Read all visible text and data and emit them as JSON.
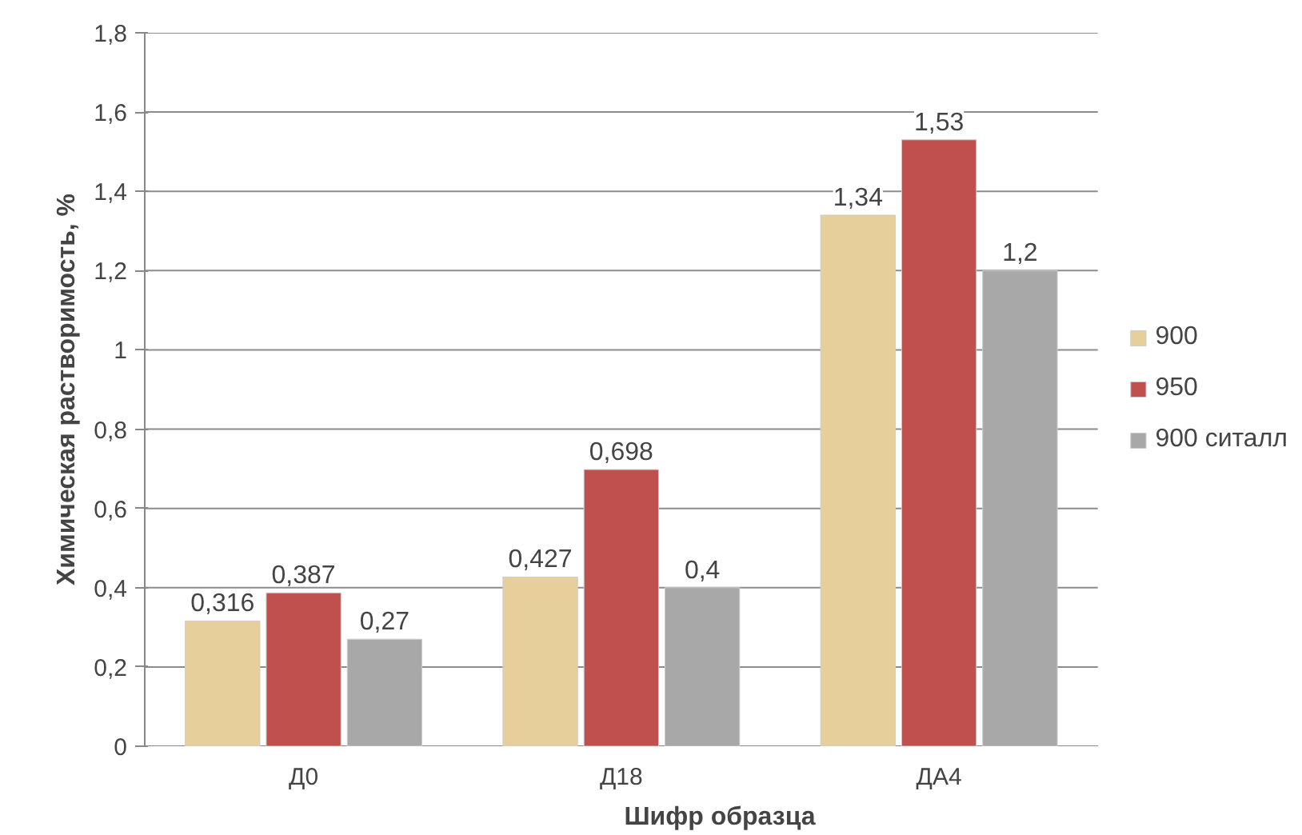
{
  "chart_data": {
    "type": "bar",
    "xlabel": "Шифр образца",
    "ylabel": "Химическая растворимость, %",
    "categories": [
      "Д0",
      "Д18",
      "ДА4"
    ],
    "series": [
      {
        "name": "900",
        "color": "#e6cf9a",
        "values": [
          0.316,
          0.427,
          1.34
        ],
        "value_labels": [
          "0,316",
          "0,427",
          "1,34"
        ]
      },
      {
        "name": "950",
        "color": "#c0504d",
        "values": [
          0.387,
          0.698,
          1.53
        ],
        "value_labels": [
          "0,387",
          "0,698",
          "1,53"
        ]
      },
      {
        "name": "900 ситалл",
        "color": "#a8a8a8",
        "values": [
          0.27,
          0.4,
          1.2
        ],
        "value_labels": [
          "0,27",
          "0,4",
          "1,2"
        ]
      }
    ],
    "ylim": [
      0,
      1.8
    ],
    "yticks": [
      0,
      {
        "value": 0.2,
        "label": "0,2"
      },
      {
        "value": 0.4,
        "label": "0,4"
      },
      {
        "value": 0.6,
        "label": "0,6"
      },
      {
        "value": 0.8,
        "label": "0,8"
      },
      1,
      {
        "value": 1.2,
        "label": "1,2"
      },
      {
        "value": 1.4,
        "label": "1,4"
      },
      {
        "value": 1.6,
        "label": "1,6"
      },
      {
        "value": 1.8,
        "label": "1,8"
      }
    ],
    "grid": "y",
    "legend": "right"
  }
}
